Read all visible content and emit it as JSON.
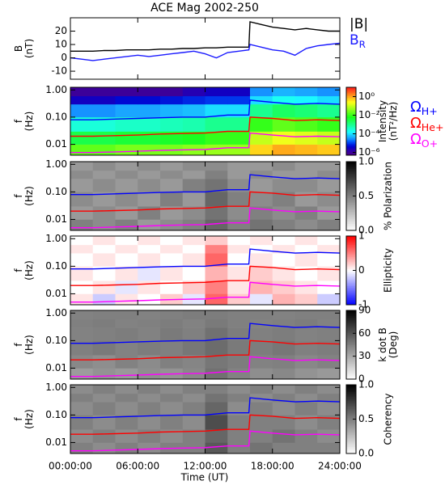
{
  "chart_data": [
    {
      "type": "line",
      "title": "ACE Mag 2002-250",
      "ylabel": [
        "B",
        "(nT)"
      ],
      "ylim": [
        -16,
        30
      ],
      "yticks": [
        -10,
        0,
        10,
        20
      ],
      "x": [
        0,
        1,
        2,
        3,
        4,
        5,
        6,
        7,
        8,
        9,
        10,
        11,
        12,
        13,
        14,
        15,
        15.9,
        16,
        17,
        18,
        19,
        20,
        21,
        22,
        23,
        24
      ],
      "series": [
        {
          "name": "|B|",
          "color": "#000000",
          "values": [
            5,
            5,
            5,
            5.5,
            5.5,
            6,
            6,
            6,
            6.5,
            6.5,
            7,
            7,
            7.5,
            7.5,
            8,
            8,
            8,
            27,
            25,
            23,
            22,
            21,
            22,
            21,
            20,
            20
          ]
        },
        {
          "name": "B",
          "name_sub": "R",
          "color": "#1a1aff",
          "values": [
            0,
            -1,
            -2,
            -1,
            0,
            1,
            2,
            1,
            2,
            3,
            4,
            5,
            3,
            0,
            4,
            5,
            6,
            10,
            8,
            6,
            5,
            2,
            7,
            9,
            10,
            11
          ]
        }
      ]
    },
    {
      "type": "heatmap",
      "ylabel": [
        "f",
        "(Hz)"
      ],
      "ylog": true,
      "ylim": [
        0.004,
        1.25
      ],
      "yticks": [
        {
          "value": 1,
          "label": "1.00"
        },
        {
          "value": 0.1,
          "label": "0.10"
        },
        {
          "value": 0.01,
          "label": "0.01"
        }
      ],
      "colormap": "rainbow",
      "zlog": true,
      "zlim": [
        5e-07,
        10
      ],
      "zticks": [
        {
          "value": 1,
          "label": "10⁰"
        },
        {
          "value": 0.01,
          "label": "10⁻²"
        },
        {
          "value": 0.0001,
          "label": "10⁻⁴"
        },
        {
          "value": 1e-06,
          "label": "10⁻⁶"
        }
      ],
      "zlabel": [
        "Intensity",
        "(nT²/Hz)"
      ],
      "x_bins": [
        0,
        2,
        4,
        6,
        8,
        10,
        12,
        14,
        16,
        18,
        20,
        22,
        24
      ],
      "y_bins": [
        0.004,
        0.01,
        0.03,
        0.1,
        0.3,
        0.6,
        1.25
      ],
      "z": [
        [
          0.02,
          0.02,
          0.03,
          0.03,
          0.03,
          0.04,
          0.05,
          0.05,
          0.5,
          1,
          0.8,
          0.6
        ],
        [
          0.003,
          0.003,
          0.004,
          0.004,
          0.005,
          0.006,
          0.01,
          0.01,
          0.1,
          0.2,
          0.15,
          0.1
        ],
        [
          0.0003,
          0.0003,
          0.0004,
          0.0004,
          0.0005,
          0.0006,
          0.001,
          0.001,
          0.01,
          0.02,
          0.015,
          0.01
        ],
        [
          3e-05,
          3e-05,
          4e-05,
          4e-05,
          5e-05,
          6e-05,
          0.0001,
          0.0001,
          0.001,
          0.002,
          0.0015,
          0.001
        ],
        [
          3e-06,
          3e-06,
          5e-06,
          5e-06,
          6e-06,
          8e-06,
          1e-05,
          1e-05,
          0.0001,
          0.0002,
          0.00015,
          0.0001
        ],
        [
          1e-06,
          1e-06,
          1e-06,
          1e-06,
          1e-06,
          2e-06,
          3e-06,
          3e-06,
          3e-05,
          5e-05,
          4e-05,
          3e-05
        ]
      ],
      "x": [
        0,
        2,
        4,
        6,
        8,
        10,
        12,
        14,
        15.9,
        16,
        18,
        20,
        22,
        24
      ],
      "series": [
        {
          "name": "Ω",
          "name_sub": "H+",
          "color": "#0000ff",
          "values": [
            0.08,
            0.08,
            0.085,
            0.09,
            0.095,
            0.1,
            0.1,
            0.12,
            0.12,
            0.42,
            0.35,
            0.3,
            0.32,
            0.3
          ]
        },
        {
          "name": "Ω",
          "name_sub": "He+",
          "color": "#ff0000",
          "values": [
            0.02,
            0.02,
            0.021,
            0.022,
            0.024,
            0.025,
            0.026,
            0.03,
            0.03,
            0.1,
            0.09,
            0.075,
            0.08,
            0.075
          ]
        },
        {
          "name": "Ω",
          "name_sub": "O+",
          "color": "#ff00ff",
          "values": [
            0.005,
            0.005,
            0.0053,
            0.0056,
            0.006,
            0.0063,
            0.0065,
            0.0075,
            0.0075,
            0.026,
            0.022,
            0.019,
            0.02,
            0.019
          ]
        }
      ]
    },
    {
      "type": "heatmap",
      "ylabel": [
        "f",
        "(Hz)"
      ],
      "ylog": true,
      "ylim": [
        0.004,
        1.25
      ],
      "yticks": [
        {
          "value": 1,
          "label": "1.00"
        },
        {
          "value": 0.1,
          "label": "0.10"
        },
        {
          "value": 0.01,
          "label": "0.01"
        }
      ],
      "colormap": "gray",
      "zlim": [
        0,
        1
      ],
      "zticks": [
        {
          "value": 1,
          "label": "1.0"
        },
        {
          "value": 0.5,
          "label": "0.5"
        },
        {
          "value": 0,
          "label": "0.0"
        }
      ],
      "zlabel": [
        "% Polarization"
      ],
      "x_bins": [
        0,
        2,
        4,
        6,
        8,
        10,
        12,
        14,
        16,
        18,
        20,
        22,
        24
      ],
      "y_bins": [
        0.004,
        0.01,
        0.03,
        0.1,
        0.3,
        0.6,
        1.25
      ],
      "z": [
        [
          0.5,
          0.45,
          0.5,
          0.4,
          0.45,
          0.5,
          0.6,
          0.5,
          0.55,
          0.5,
          0.45,
          0.5
        ],
        [
          0.4,
          0.45,
          0.4,
          0.5,
          0.4,
          0.45,
          0.55,
          0.45,
          0.5,
          0.45,
          0.5,
          0.4
        ],
        [
          0.45,
          0.4,
          0.45,
          0.4,
          0.5,
          0.4,
          0.6,
          0.5,
          0.45,
          0.5,
          0.4,
          0.45
        ],
        [
          0.4,
          0.45,
          0.4,
          0.45,
          0.4,
          0.5,
          0.55,
          0.45,
          0.4,
          0.45,
          0.45,
          0.4
        ],
        [
          0.45,
          0.4,
          0.45,
          0.4,
          0.45,
          0.4,
          0.5,
          0.4,
          0.45,
          0.4,
          0.4,
          0.45
        ],
        [
          0.4,
          0.45,
          0.4,
          0.45,
          0.4,
          0.45,
          0.45,
          0.4,
          0.4,
          0.45,
          0.4,
          0.4
        ]
      ]
    },
    {
      "type": "heatmap",
      "ylabel": [
        "f",
        "(Hz)"
      ],
      "ylog": true,
      "ylim": [
        0.004,
        1.25
      ],
      "yticks": [
        {
          "value": 1,
          "label": "1.00"
        },
        {
          "value": 0.1,
          "label": "0.10"
        },
        {
          "value": 0.01,
          "label": "0.01"
        }
      ],
      "colormap": "bwr",
      "zlim": [
        -1,
        1
      ],
      "zticks": [
        1,
        0,
        -1
      ],
      "zlabel": [
        "Ellipticity"
      ],
      "x_bins": [
        0,
        2,
        4,
        6,
        8,
        10,
        12,
        14,
        16,
        18,
        20,
        22,
        24
      ],
      "y_bins": [
        0.004,
        0.01,
        0.03,
        0.1,
        0.3,
        0.6,
        1.25
      ],
      "z": [
        [
          0.1,
          -0.2,
          0.1,
          0.0,
          0.2,
          -0.1,
          0.6,
          0.2,
          -0.1,
          0.3,
          0.2,
          -0.2
        ],
        [
          0.0,
          0.1,
          -0.1,
          0.1,
          0.0,
          0.2,
          0.5,
          0.1,
          0.3,
          0.2,
          0.1,
          0.0
        ],
        [
          0.1,
          0.0,
          0.1,
          -0.1,
          0.1,
          0.0,
          0.3,
          0.1,
          0.2,
          0.1,
          0.0,
          0.1
        ],
        [
          0.0,
          0.1,
          0.0,
          0.1,
          0.0,
          0.1,
          0.6,
          0.0,
          0.1,
          0.0,
          0.1,
          0.0
        ],
        [
          0.1,
          0.0,
          0.1,
          0.0,
          0.1,
          0.0,
          0.5,
          0.1,
          0.0,
          0.1,
          0.0,
          0.1
        ],
        [
          0.0,
          0.1,
          0.0,
          0.1,
          0.0,
          0.1,
          0.2,
          0.0,
          0.1,
          0.0,
          0.1,
          0.0
        ]
      ]
    },
    {
      "type": "heatmap",
      "ylabel": [
        "f",
        "(Hz)"
      ],
      "ylog": true,
      "ylim": [
        0.004,
        1.25
      ],
      "yticks": [
        {
          "value": 1,
          "label": "1.00"
        },
        {
          "value": 0.1,
          "label": "0.10"
        },
        {
          "value": 0.01,
          "label": "0.01"
        }
      ],
      "colormap": "gray",
      "zlim": [
        0,
        90
      ],
      "zticks": [
        90,
        60,
        30,
        0
      ],
      "zlabel": [
        "k dot B",
        "(Deg)"
      ],
      "x_bins": [
        0,
        2,
        4,
        6,
        8,
        10,
        12,
        14,
        16,
        18,
        20,
        22,
        24
      ],
      "y_bins": [
        0.004,
        0.01,
        0.03,
        0.1,
        0.3,
        0.6,
        1.25
      ],
      "z": [
        [
          35,
          38,
          36,
          40,
          38,
          42,
          50,
          44,
          40,
          42,
          38,
          36
        ],
        [
          42,
          40,
          44,
          41,
          45,
          43,
          48,
          46,
          44,
          45,
          42,
          44
        ],
        [
          45,
          47,
          44,
          46,
          45,
          48,
          52,
          47,
          46,
          48,
          45,
          46
        ],
        [
          44,
          45,
          46,
          44,
          47,
          45,
          50,
          46,
          45,
          46,
          44,
          45
        ],
        [
          45,
          46,
          44,
          45,
          46,
          44,
          47,
          45,
          44,
          45,
          46,
          44
        ],
        [
          44,
          45,
          45,
          44,
          45,
          46,
          46,
          45,
          45,
          44,
          45,
          45
        ]
      ]
    },
    {
      "type": "heatmap",
      "ylabel": [
        "f",
        "(Hz)"
      ],
      "ylog": true,
      "ylim": [
        0.004,
        1.25
      ],
      "yticks": [
        {
          "value": 1,
          "label": "1.00"
        },
        {
          "value": 0.1,
          "label": "0.10"
        },
        {
          "value": 0.01,
          "label": "0.01"
        }
      ],
      "colormap": "gray",
      "zlim": [
        0,
        1
      ],
      "zticks": [
        {
          "value": 1,
          "label": "1.0"
        },
        {
          "value": 0.5,
          "label": "0.5"
        },
        {
          "value": 0,
          "label": "0.0"
        }
      ],
      "zlabel": [
        "Coherency"
      ],
      "x_bins": [
        0,
        2,
        4,
        6,
        8,
        10,
        12,
        14,
        16,
        18,
        20,
        22,
        24
      ],
      "y_bins": [
        0.004,
        0.01,
        0.03,
        0.1,
        0.3,
        0.6,
        1.25
      ],
      "z": [
        [
          0.5,
          0.45,
          0.5,
          0.45,
          0.5,
          0.5,
          0.65,
          0.5,
          0.55,
          0.5,
          0.5,
          0.5
        ],
        [
          0.45,
          0.5,
          0.45,
          0.5,
          0.45,
          0.5,
          0.6,
          0.5,
          0.5,
          0.55,
          0.5,
          0.45
        ],
        [
          0.5,
          0.45,
          0.5,
          0.45,
          0.5,
          0.45,
          0.7,
          0.5,
          0.5,
          0.5,
          0.45,
          0.5
        ],
        [
          0.45,
          0.5,
          0.45,
          0.5,
          0.45,
          0.5,
          0.6,
          0.45,
          0.5,
          0.45,
          0.5,
          0.45
        ],
        [
          0.5,
          0.45,
          0.5,
          0.45,
          0.5,
          0.45,
          0.55,
          0.5,
          0.45,
          0.5,
          0.45,
          0.5
        ],
        [
          0.45,
          0.5,
          0.45,
          0.5,
          0.45,
          0.5,
          0.5,
          0.45,
          0.5,
          0.45,
          0.5,
          0.45
        ]
      ],
      "xlabel": "Time (UT)",
      "xlim": [
        0,
        24
      ],
      "xticks": [
        {
          "value": 0,
          "label": "00:00:00"
        },
        {
          "value": 6,
          "label": "06:00:00"
        },
        {
          "value": 12,
          "label": "12:00:00"
        },
        {
          "value": 18,
          "label": "18:00:00"
        },
        {
          "value": 24,
          "label": "24:00:00"
        }
      ]
    }
  ]
}
